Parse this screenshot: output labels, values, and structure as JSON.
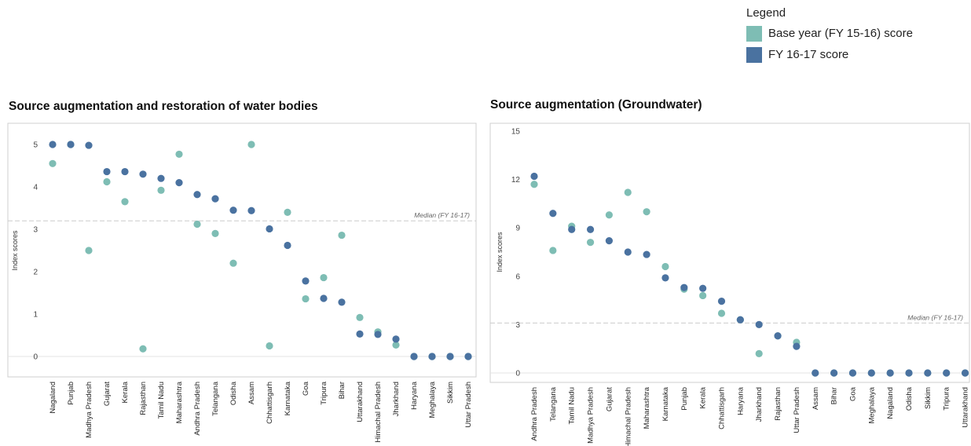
{
  "legend": {
    "title": "Legend",
    "items": [
      {
        "label": "Base year (FY 15-16) score",
        "color": "#7ebdb4"
      },
      {
        "label": "FY 16-17 score",
        "color": "#4a72a0"
      }
    ]
  },
  "chart_data": [
    {
      "type": "scatter",
      "title": "Source augmentation and restoration of water bodies",
      "ylabel": "Index scores",
      "ylim": [
        0,
        5
      ],
      "yticks": [
        0,
        1,
        2,
        3,
        4,
        5
      ],
      "median_label": "Median (FY 16-17)",
      "median_value": 3.2,
      "categories": [
        "Nagaland",
        "Punjab",
        "Madhya Pradesh",
        "Gujarat",
        "Kerala",
        "Rajasthan",
        "Tamil Nadu",
        "Maharashtra",
        "Andhra Pradesh",
        "Telangana",
        "Odisha",
        "Assam",
        "Chhattisgarh",
        "Karnataka",
        "Goa",
        "Tripura",
        "Bihar",
        "Uttarakhand",
        "Himachal Pradesh",
        "Jharkhand",
        "Haryana",
        "Meghalaya",
        "Sikkim",
        "Uttar Pradesh"
      ],
      "series": [
        {
          "name": "Base year (FY 15-16) score",
          "color": "#7ebdb4",
          "values": [
            4.55,
            5.0,
            2.5,
            4.12,
            3.65,
            0.18,
            3.92,
            4.77,
            3.12,
            2.9,
            2.2,
            5.0,
            0.25,
            3.4,
            1.36,
            1.86,
            2.86,
            0.92,
            0.58,
            0.27,
            0,
            0,
            0,
            0
          ]
        },
        {
          "name": "FY 16-17 score",
          "color": "#4a72a0",
          "values": [
            5.0,
            5.0,
            4.98,
            4.36,
            4.36,
            4.3,
            4.2,
            4.1,
            3.82,
            3.72,
            3.45,
            3.44,
            3.01,
            2.62,
            1.78,
            1.37,
            1.28,
            0.53,
            0.52,
            0.41,
            0,
            0,
            0,
            0
          ]
        }
      ]
    },
    {
      "type": "scatter",
      "title": "Source augmentation (Groundwater)",
      "ylabel": "Index scores",
      "ylim": [
        0,
        15
      ],
      "yticks": [
        0,
        3,
        6,
        9,
        12,
        15
      ],
      "median_label": "Median (FY 16-17)",
      "median_value": 3.1,
      "categories": [
        "Andhra Pradesh",
        "Telangana",
        "Tamil Nadu",
        "Madhya Pradesh",
        "Gujarat",
        "Himachal Pradesh",
        "Maharashtra",
        "Karnataka",
        "Punjab",
        "Kerala",
        "Chhattisgarh",
        "Haryana",
        "Jharkhand",
        "Rajasthan",
        "Uttar Pradesh",
        "Assam",
        "Bihar",
        "Goa",
        "Meghalaya",
        "Nagaland",
        "Odisha",
        "Sikkim",
        "Tripura",
        "Uttarakhand"
      ],
      "series": [
        {
          "name": "Base year (FY 15-16) score",
          "color": "#7ebdb4",
          "values": [
            11.7,
            7.6,
            9.1,
            8.1,
            9.8,
            11.2,
            10.0,
            6.6,
            5.2,
            4.8,
            3.7,
            3.3,
            1.2,
            2.3,
            1.9,
            0,
            0,
            0,
            0,
            0,
            0,
            0,
            0,
            0
          ]
        },
        {
          "name": "FY 16-17 score",
          "color": "#4a72a0",
          "values": [
            12.2,
            9.9,
            8.9,
            8.9,
            8.2,
            7.5,
            7.35,
            5.9,
            5.3,
            5.25,
            4.45,
            3.3,
            3.0,
            2.3,
            1.65,
            0,
            0,
            0,
            0,
            0,
            0,
            0,
            0,
            0
          ]
        }
      ]
    }
  ]
}
